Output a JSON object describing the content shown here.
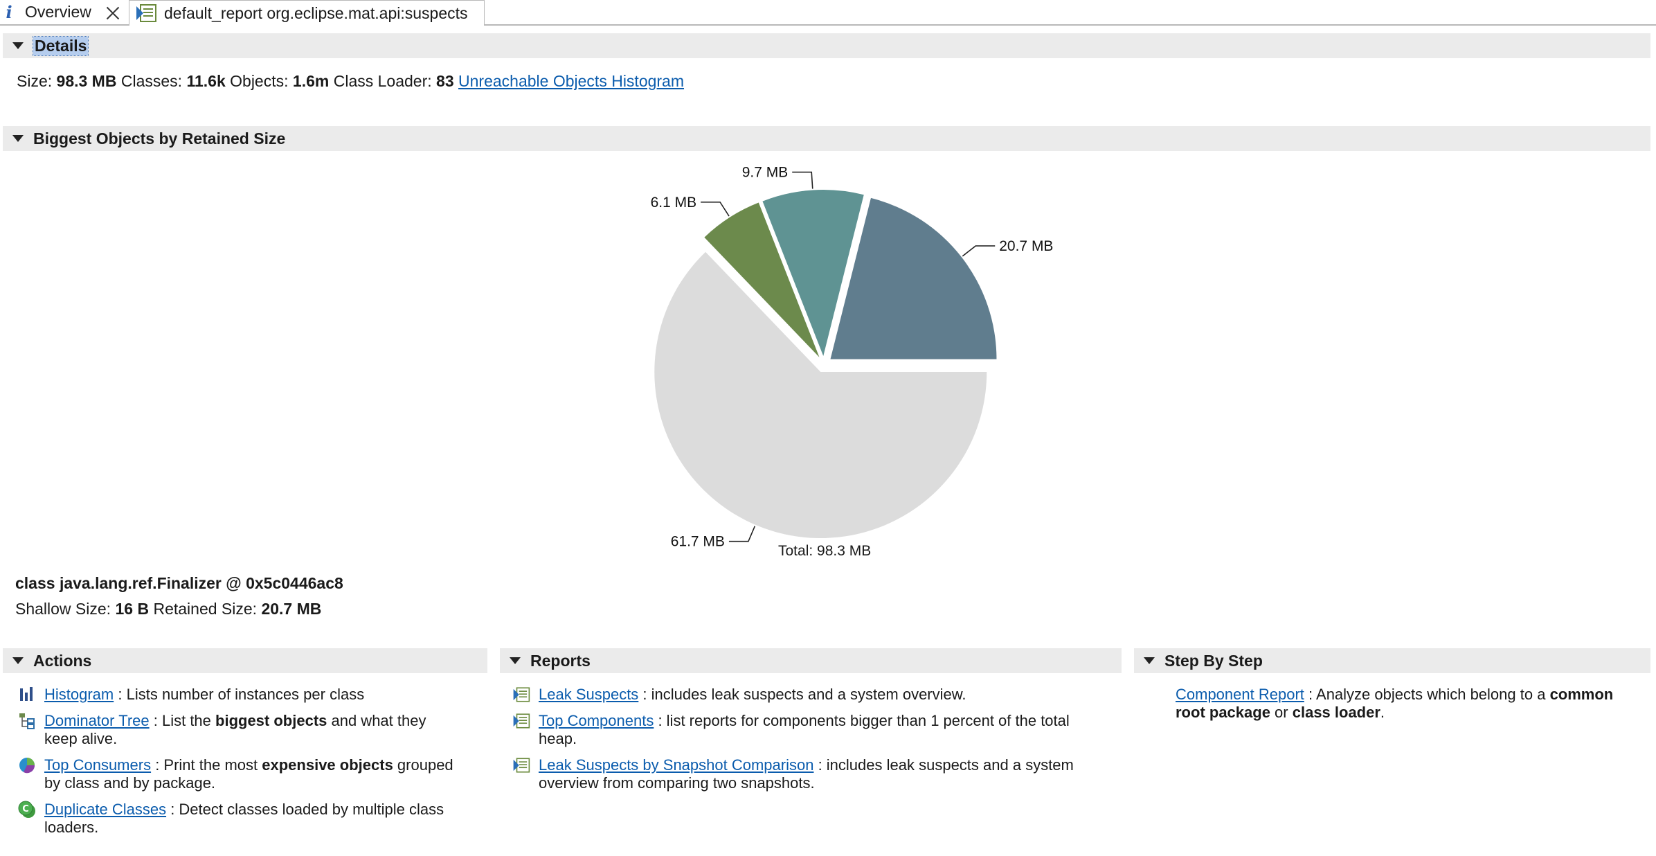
{
  "tabs": [
    {
      "label": "Overview"
    },
    {
      "label": "default_report org.eclipse.mat.api:suspects"
    }
  ],
  "details": {
    "header": "Details",
    "size_label": "Size:",
    "size_value": "98.3 MB",
    "classes_label": "Classes:",
    "classes_value": "11.6k",
    "objects_label": "Objects:",
    "objects_value": "1.6m",
    "loader_label": "Class Loader:",
    "loader_value": "83",
    "unreachable_link": "Unreachable Objects Histogram"
  },
  "biggest": {
    "header": "Biggest Objects by Retained Size",
    "total_label": "Total: 98.3 MB",
    "object_title": "class java.lang.ref.Finalizer @ 0x5c0446ac8",
    "shallow_label": "Shallow Size:",
    "shallow_value": "16 B",
    "retained_label": "Retained Size:",
    "retained_value": "20.7 MB"
  },
  "chart_data": {
    "type": "pie",
    "total": 98.3,
    "unit": "MB",
    "slices": [
      {
        "label": "20.7 MB",
        "value": 20.7,
        "color": "#607d8e"
      },
      {
        "label": "9.7 MB",
        "value": 9.7,
        "color": "#5f9393"
      },
      {
        "label": "6.1 MB",
        "value": 6.1,
        "color": "#6c8a4c"
      },
      {
        "label": "61.7 MB",
        "value": 61.7,
        "color": "#dcdcdc"
      }
    ]
  },
  "actions": {
    "header": "Actions",
    "items": [
      {
        "icon": "histogram-icon",
        "link": "Histogram",
        "sep": " : ",
        "text": "Lists number of instances per class"
      },
      {
        "icon": "dominator-tree-icon",
        "link": "Dominator Tree",
        "sep": " : ",
        "pre": "List the ",
        "bold": "biggest objects",
        "post": " and what they keep alive."
      },
      {
        "icon": "top-consumers-icon",
        "link": "Top Consumers",
        "sep": " : ",
        "pre": "Print the most ",
        "bold": "expensive objects",
        "post": " grouped by class and by package."
      },
      {
        "icon": "duplicate-classes-icon",
        "link": "Duplicate Classes",
        "sep": " : ",
        "text": "Detect classes loaded by multiple class loaders."
      }
    ]
  },
  "reports": {
    "header": "Reports",
    "items": [
      {
        "icon": "report-icon",
        "link": "Leak Suspects",
        "sep": " : ",
        "text": "includes leak suspects and a system overview."
      },
      {
        "icon": "report-icon",
        "link": "Top Components",
        "sep": " : ",
        "text": "list reports for components bigger than 1 percent of the total heap."
      },
      {
        "icon": "report-icon",
        "link": "Leak Suspects by Snapshot Comparison",
        "sep": " : ",
        "text": "includes leak suspects and a system overview from comparing two snapshots."
      }
    ]
  },
  "steps": {
    "header": "Step By Step",
    "link": "Component Report",
    "sep": " : ",
    "pre": "Analyze objects which belong to a ",
    "bold1": "common root package",
    "mid": " or ",
    "bold2": "class loader",
    "post": "."
  }
}
